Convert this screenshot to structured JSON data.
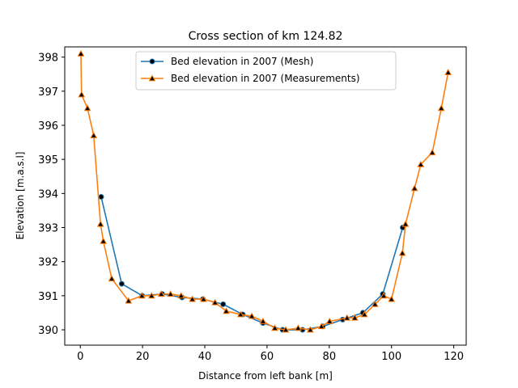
{
  "chart_data": {
    "type": "line",
    "title": "Cross section of km 124.82",
    "xlabel": "Distance from left bank [m]",
    "ylabel": "Elevation [m.a.s.l]",
    "xlim": [
      -5,
      124
    ],
    "ylim": [
      389.55,
      398.3
    ],
    "xticks": [
      0,
      20,
      40,
      60,
      80,
      100,
      120
    ],
    "yticks": [
      390,
      391,
      392,
      393,
      394,
      395,
      396,
      397,
      398
    ],
    "grid": false,
    "legend_position": "top-center",
    "series": [
      {
        "name": "Bed elevation in 2007 (Mesh)",
        "color": "#1f77b4",
        "marker": "circle",
        "marker_color": "#000000",
        "x": [
          6.7,
          13.3,
          19.9,
          26.3,
          32.7,
          39.4,
          45.9,
          52.2,
          58.7,
          65.0,
          71.4,
          77.9,
          84.3,
          90.8,
          97.2,
          103.6
        ],
        "y": [
          393.9,
          391.35,
          391.0,
          391.05,
          390.95,
          390.9,
          390.75,
          390.45,
          390.2,
          390.0,
          390.0,
          390.1,
          390.3,
          390.5,
          391.05,
          393.0
        ]
      },
      {
        "name": "Bed elevation in 2007 (Measurements)",
        "color": "#ff7f0e",
        "marker": "triangle",
        "marker_color": "#000000",
        "x": [
          0.2,
          0.4,
          2.3,
          4.3,
          6.5,
          7.4,
          10.1,
          15.5,
          19.8,
          22.9,
          26.0,
          29.0,
          32.4,
          36.0,
          39.6,
          43.3,
          46.9,
          51.5,
          55.1,
          58.7,
          62.5,
          66.0,
          70.0,
          73.9,
          77.5,
          80.1,
          85.7,
          88.2,
          91.3,
          94.7,
          97.5,
          100.0,
          103.5,
          104.5,
          107.4,
          109.4,
          113.1,
          116.0,
          118.2
        ],
        "y": [
          398.1,
          396.9,
          396.5,
          395.7,
          393.1,
          392.6,
          391.5,
          390.85,
          391.0,
          391.0,
          391.05,
          391.05,
          391.0,
          390.9,
          390.9,
          390.8,
          390.55,
          390.45,
          390.4,
          390.25,
          390.05,
          390.0,
          390.05,
          390.0,
          390.1,
          390.25,
          390.35,
          390.35,
          390.45,
          390.75,
          391.0,
          390.9,
          392.25,
          393.1,
          394.15,
          394.85,
          395.2,
          396.5,
          397.55
        ]
      }
    ]
  }
}
